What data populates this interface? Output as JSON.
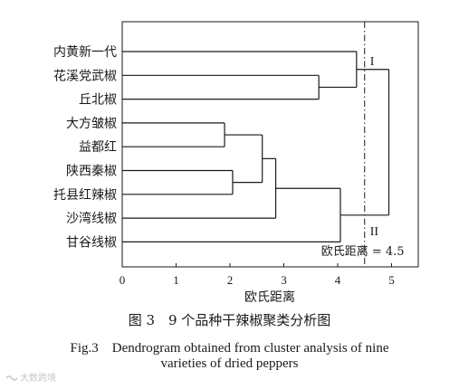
{
  "chart_data": {
    "type": "dendrogram",
    "orientation": "horizontal",
    "xlabel": "欧氏距离",
    "xlim": [
      0,
      5.5
    ],
    "x_ticks": [
      0,
      1,
      2,
      3,
      4,
      5
    ],
    "x_tick_labels": [
      "0",
      "1",
      "2",
      "3",
      "4",
      "5"
    ],
    "leaves": [
      "内黄新一代",
      "花溪党武椒",
      "丘北椒",
      "大方皱椒",
      "益都红",
      "陕西秦椒",
      "托县红辣椒",
      "沙湾线椒",
      "甘谷线椒"
    ],
    "merges": [
      {
        "children": [
          "大方皱椒",
          "益都红"
        ],
        "distance": 1.9
      },
      {
        "children": [
          "陕西秦椒",
          "托县红辣椒"
        ],
        "distance": 2.05
      },
      {
        "children": [
          "大方皱椒+益都红",
          "陕西秦椒+托县红辣椒"
        ],
        "distance": 2.6
      },
      {
        "children": [
          "花溪党武椒",
          "丘北椒"
        ],
        "distance": 3.65
      },
      {
        "children": [
          "上述四品种组",
          "沙湾线椒"
        ],
        "distance": 2.85
      },
      {
        "children": [
          "内黄新一代",
          "花溪党武椒+丘北椒"
        ],
        "distance": 4.35
      },
      {
        "children": [
          "大方皱椒…沙湾线椒",
          "甘谷线椒"
        ],
        "distance": 4.05
      },
      {
        "children": [
          "类群 I",
          "类群 II"
        ],
        "distance": 4.95
      }
    ],
    "cut_line": {
      "distance": 4.5,
      "label": "欧氏距离 = 4.5"
    },
    "cluster_labels": [
      "I",
      "II"
    ],
    "grid": false
  },
  "caption": {
    "cn": "图 3　9 个品种干辣椒聚类分析图",
    "en_line1": "Fig.3　Dendrogram obtained from cluster analysis of nine",
    "en_line2": "varieties of dried peppers"
  },
  "watermark": {
    "text": "大数跨境"
  },
  "colors": {
    "line": "#1a1a1a",
    "text": "#1a1a1a",
    "watermark": "#c8c8c8"
  }
}
